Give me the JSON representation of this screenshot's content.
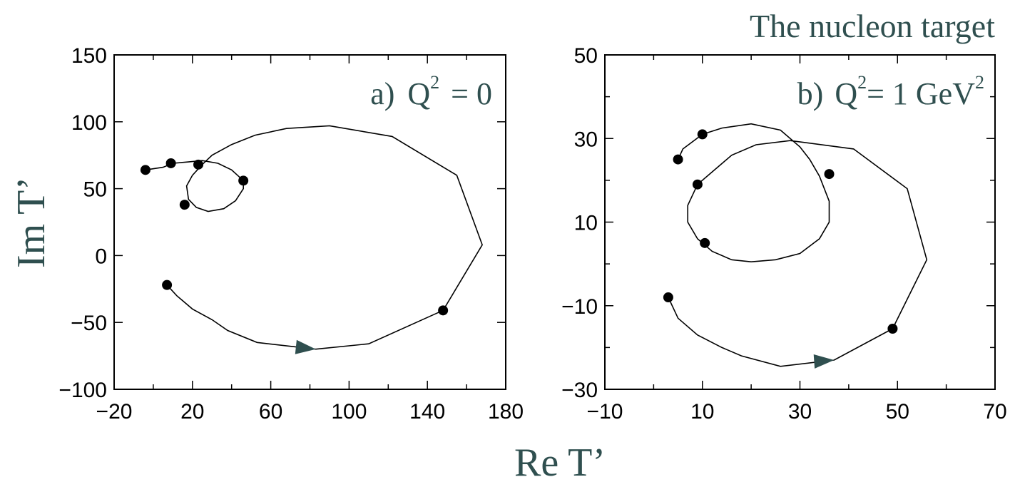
{
  "header": {
    "title": "The nucleon target"
  },
  "axes": {
    "xlabel": "Re T’",
    "ylabel": "Im T’"
  },
  "colors": {
    "text": "#2f4f4f",
    "arrow": "#2f4f4f",
    "curve": "#000000",
    "points": "#000000"
  },
  "chart_data": [
    {
      "type": "line",
      "panel_label": "a)",
      "panel_q": "Q",
      "panel_exp": "2",
      "panel_rest": "= 0",
      "xlim": [
        -20,
        180
      ],
      "ylim": [
        -100,
        150
      ],
      "xticks": [
        -20,
        20,
        60,
        100,
        140,
        180
      ],
      "xtick_labels": [
        "−20",
        "20",
        "60",
        "100",
        "140",
        "180"
      ],
      "yticks": [
        -100,
        -50,
        0,
        50,
        100,
        150
      ],
      "ytick_labels": [
        "−100",
        "−50",
        "0",
        "50",
        "100",
        "150"
      ],
      "x_minor": [
        0,
        40,
        80,
        120,
        160
      ],
      "y_minor": [],
      "curve": [
        [
          7,
          -22
        ],
        [
          12,
          -30
        ],
        [
          20,
          -40
        ],
        [
          30,
          -48
        ],
        [
          38,
          -56
        ],
        [
          53,
          -65
        ],
        [
          83,
          -70
        ],
        [
          110,
          -66
        ],
        [
          148,
          -41
        ],
        [
          168,
          8
        ],
        [
          155,
          60
        ],
        [
          122,
          89
        ],
        [
          90,
          97
        ],
        [
          68,
          95
        ],
        [
          52,
          90
        ],
        [
          40,
          83
        ],
        [
          30,
          75
        ],
        [
          25,
          68
        ],
        [
          20,
          60
        ],
        [
          17,
          52
        ],
        [
          18,
          42
        ],
        [
          22,
          36
        ],
        [
          28,
          33
        ],
        [
          36,
          35
        ],
        [
          42,
          41
        ],
        [
          46,
          50
        ],
        [
          46,
          56
        ],
        [
          40,
          64
        ],
        [
          33,
          69
        ],
        [
          25,
          71
        ],
        [
          18,
          70
        ],
        [
          10,
          69
        ],
        [
          5,
          66
        ],
        [
          -4,
          64
        ]
      ],
      "points": [
        [
          7,
          -22
        ],
        [
          148,
          -41
        ],
        [
          46,
          56
        ],
        [
          16,
          38
        ],
        [
          23,
          68
        ],
        [
          9,
          69
        ],
        [
          -4,
          64
        ]
      ],
      "arrow": {
        "x": 83,
        "y": -70,
        "from_x": 70,
        "from_y": -68
      }
    },
    {
      "type": "line",
      "panel_label": "b)",
      "panel_q": "Q",
      "panel_exp": "2",
      "panel_mid": "= 1 GeV",
      "panel_exp2": "2",
      "xlim": [
        -10,
        70
      ],
      "ylim": [
        -30,
        50
      ],
      "xticks": [
        -10,
        10,
        30,
        50,
        70
      ],
      "xtick_labels": [
        "−10",
        "10",
        "30",
        "50",
        "70"
      ],
      "yticks": [
        -30,
        -10,
        10,
        30,
        50
      ],
      "ytick_labels": [
        "−30",
        "−10",
        "10",
        "30",
        "50"
      ],
      "x_minor": [
        0,
        20,
        40,
        60
      ],
      "y_minor": [
        -20,
        0,
        20,
        40
      ],
      "curve": [
        [
          3,
          -8
        ],
        [
          5,
          -13
        ],
        [
          9,
          -17
        ],
        [
          14,
          -20
        ],
        [
          18,
          -22
        ],
        [
          26,
          -24.5
        ],
        [
          37,
          -23
        ],
        [
          49,
          -15.5
        ],
        [
          56,
          1
        ],
        [
          52,
          18
        ],
        [
          41,
          27.5
        ],
        [
          28,
          29.5
        ],
        [
          21,
          28.5
        ],
        [
          16,
          26
        ],
        [
          12,
          22
        ],
        [
          9,
          19
        ],
        [
          7,
          14
        ],
        [
          7,
          10
        ],
        [
          9,
          6
        ],
        [
          12,
          3
        ],
        [
          16,
          1
        ],
        [
          20,
          0.5
        ],
        [
          25,
          1
        ],
        [
          30,
          2.5
        ],
        [
          34,
          6
        ],
        [
          36,
          10
        ],
        [
          36,
          15
        ],
        [
          34,
          21
        ],
        [
          32,
          25
        ],
        [
          30,
          28
        ],
        [
          26,
          32
        ],
        [
          20,
          33.5
        ],
        [
          14,
          32.5
        ],
        [
          10,
          31
        ],
        [
          6,
          27.5
        ],
        [
          5,
          25
        ]
      ],
      "points": [
        [
          3,
          -8
        ],
        [
          49,
          -15.5
        ],
        [
          10.5,
          5
        ],
        [
          36,
          21.5
        ],
        [
          9,
          19
        ],
        [
          5,
          25
        ],
        [
          10,
          31
        ]
      ],
      "arrow": {
        "x": 37,
        "y": -23,
        "from_x": 31,
        "from_y": -23.5
      }
    }
  ]
}
